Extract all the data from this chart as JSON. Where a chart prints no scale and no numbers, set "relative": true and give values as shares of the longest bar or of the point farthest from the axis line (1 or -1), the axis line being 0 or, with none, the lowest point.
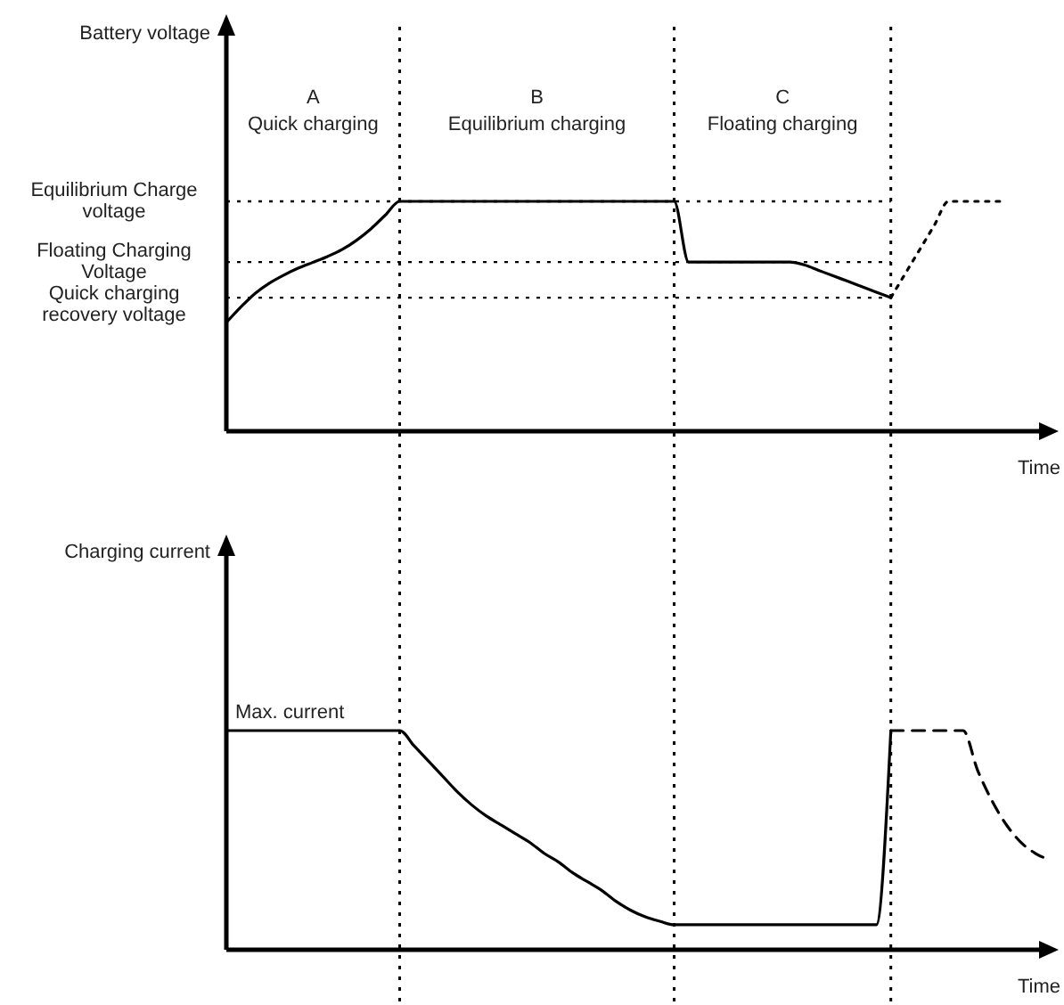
{
  "chart_data": [
    {
      "type": "line",
      "relative": true,
      "grid": "x",
      "ylabel": "Battery voltage",
      "xlabel": "Time",
      "categories": [
        null,
        null,
        null,
        null,
        null,
        null,
        null,
        null,
        null,
        null,
        null,
        null,
        null,
        null,
        null,
        null,
        null,
        null,
        null,
        null,
        null,
        null,
        null,
        null,
        null,
        null,
        null,
        null,
        null,
        null,
        null,
        null,
        null,
        null,
        null,
        null,
        null,
        null,
        null,
        null,
        null,
        null,
        null,
        null,
        null,
        null,
        null,
        null,
        null,
        null,
        null,
        null,
        null,
        null,
        null,
        null,
        null,
        null
      ],
      "series": [
        {
          "color": "#000000",
          "line_style": "solid",
          "values": [
            0.473,
            0.54,
            0.6,
            0.645,
            0.68,
            0.71,
            0.735,
            0.76,
            0.79,
            0.83,
            0.88,
            0.94,
            1,
            1,
            1,
            1,
            1,
            1,
            1,
            1,
            1,
            1,
            1,
            1,
            1,
            1,
            1,
            1,
            1,
            1,
            1,
            1,
            0.736,
            0.736,
            0.736,
            0.736,
            0.736,
            0.736,
            0.736,
            0.736,
            0.724,
            0.7,
            0.676,
            0.653,
            0.629,
            0.605,
            0.581,
            null,
            null,
            null,
            null,
            null,
            null,
            null,
            null,
            null,
            null,
            null
          ]
        },
        {
          "color": "#000000",
          "line_style": "dotted",
          "values": [
            null,
            null,
            null,
            null,
            null,
            null,
            null,
            null,
            null,
            null,
            null,
            null,
            null,
            null,
            null,
            null,
            null,
            null,
            null,
            null,
            null,
            null,
            null,
            null,
            null,
            null,
            null,
            null,
            null,
            null,
            null,
            null,
            null,
            null,
            null,
            null,
            null,
            null,
            null,
            null,
            null,
            null,
            null,
            null,
            null,
            null,
            0.581,
            0.686,
            0.79,
            0.895,
            1,
            1,
            1,
            1,
            1,
            null,
            null,
            null
          ]
        }
      ],
      "ref_lines": [
        {
          "axis": "y",
          "value": 1,
          "label": "Equilibrium Charge voltage",
          "line_style": "dotted"
        },
        {
          "axis": "y",
          "value": 0.736,
          "label": "Floating Charging Voltage",
          "line_style": "dotted"
        },
        {
          "axis": "y",
          "value": 0.581,
          "label": "Quick charging recovery voltage",
          "line_style": "dotted"
        }
      ],
      "annotations": [
        "A",
        "Quick charging",
        "B",
        "Equilibrium charging",
        "C",
        "Floating charging"
      ]
    },
    {
      "type": "line",
      "relative": true,
      "grid": "x",
      "ylabel": "Charging current",
      "xlabel": "Time",
      "categories": [
        null,
        null,
        null,
        null,
        null,
        null,
        null,
        null,
        null,
        null,
        null,
        null,
        null,
        null,
        null,
        null,
        null,
        null,
        null,
        null,
        null,
        null,
        null,
        null,
        null,
        null,
        null,
        null,
        null,
        null,
        null,
        null,
        null,
        null,
        null,
        null,
        null,
        null,
        null,
        null,
        null,
        null,
        null,
        null,
        null,
        null,
        null,
        null,
        null,
        null,
        null,
        null,
        null,
        null,
        null,
        null,
        null,
        null
      ],
      "series": [
        {
          "color": "#000000",
          "line_style": "solid",
          "values": [
            1,
            1,
            1,
            1,
            1,
            1,
            1,
            1,
            1,
            1,
            1,
            1,
            1,
            0.93,
            0.86,
            0.79,
            0.72,
            0.66,
            0.61,
            0.57,
            0.53,
            0.49,
            0.44,
            0.4,
            0.35,
            0.31,
            0.27,
            0.22,
            0.18,
            0.15,
            0.13,
            0.114,
            0.114,
            0.114,
            0.114,
            0.114,
            0.114,
            0.114,
            0.114,
            0.114,
            0.114,
            0.114,
            0.114,
            0.114,
            0.114,
            0.114,
            1,
            null,
            null,
            null,
            null,
            null,
            null,
            null,
            null,
            null,
            null,
            null
          ]
        },
        {
          "color": "#000000",
          "line_style": "dashed",
          "values": [
            null,
            null,
            null,
            null,
            null,
            null,
            null,
            null,
            null,
            null,
            null,
            null,
            null,
            null,
            null,
            null,
            null,
            null,
            null,
            null,
            null,
            null,
            null,
            null,
            null,
            null,
            null,
            null,
            null,
            null,
            null,
            null,
            null,
            null,
            null,
            null,
            null,
            null,
            null,
            null,
            null,
            null,
            null,
            null,
            null,
            null,
            1,
            1,
            1,
            1,
            1,
            1,
            0.82,
            0.68,
            0.57,
            0.49,
            0.44,
            0.41
          ]
        }
      ],
      "annotations": [
        {
          "text": "Max. current",
          "y": 1
        }
      ]
    }
  ]
}
